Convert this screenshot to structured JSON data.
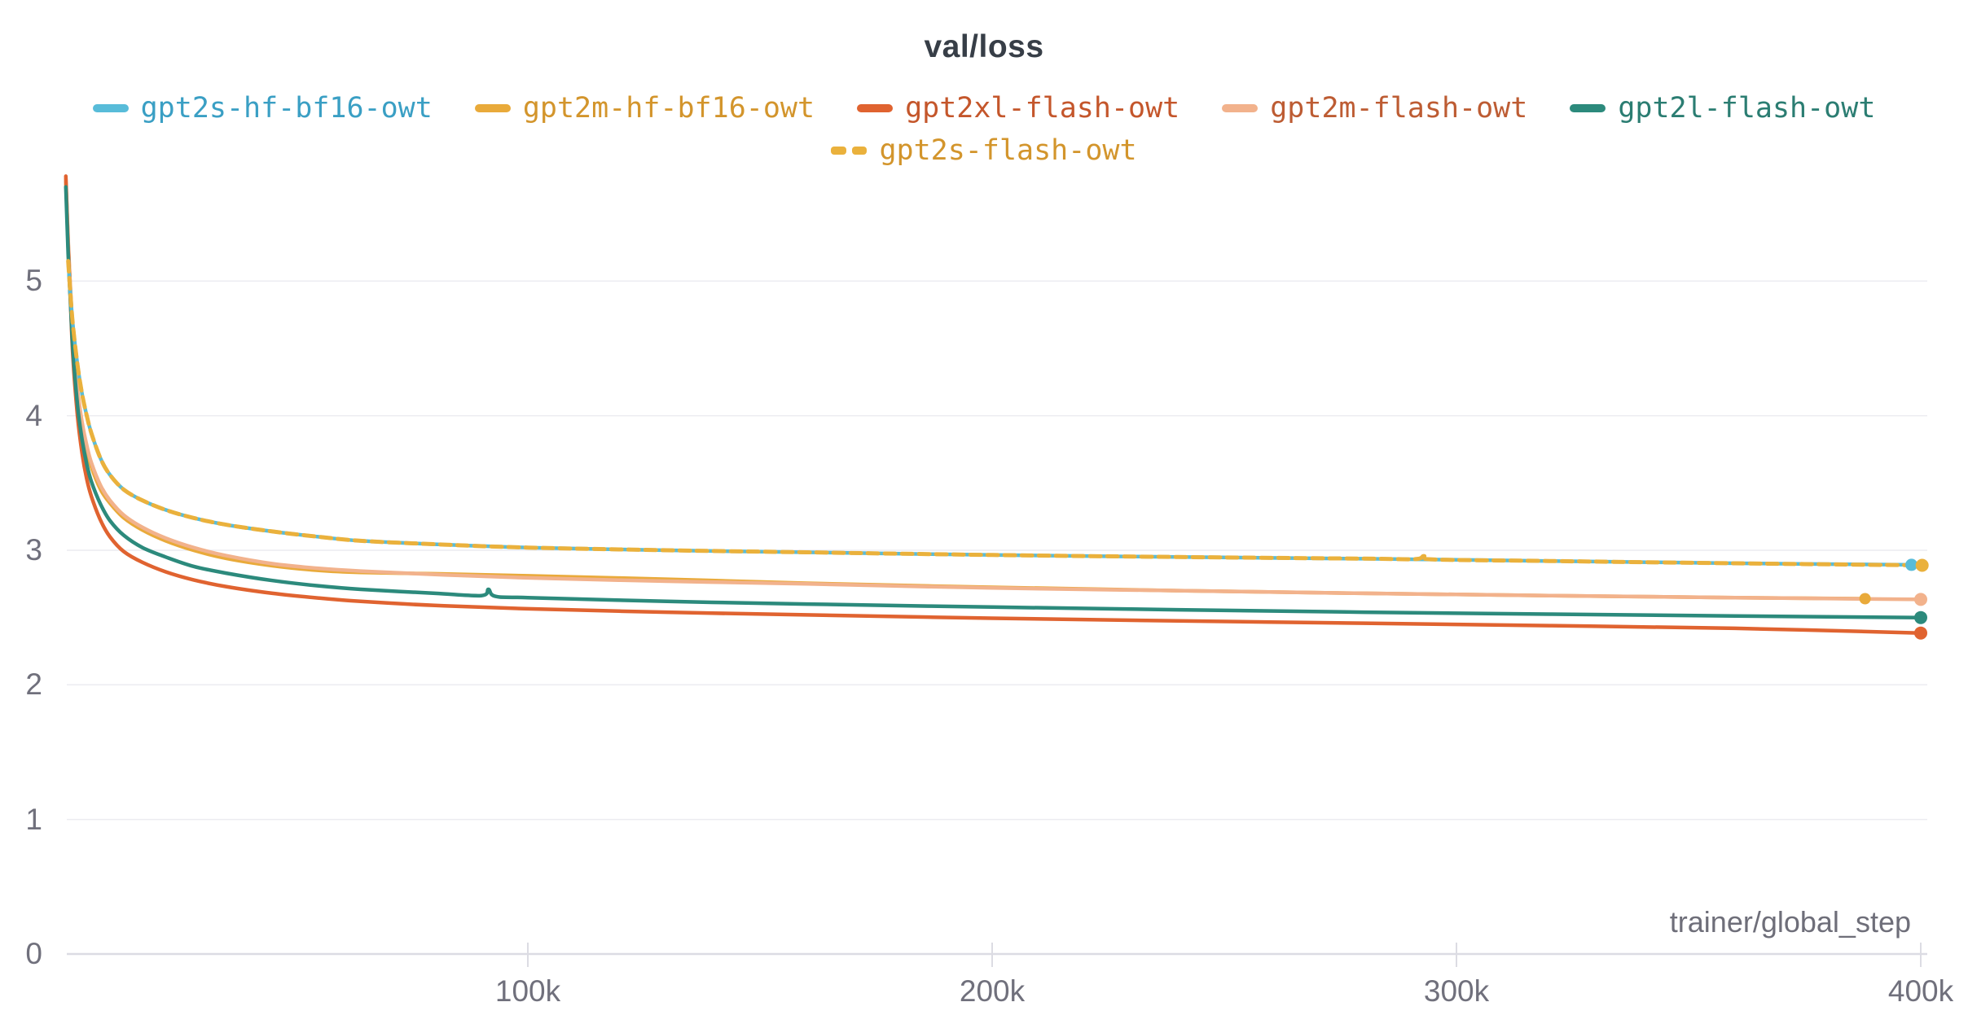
{
  "chart": {
    "title": "val/loss",
    "x_axis_label": "trainer/global_step"
  },
  "colors": {
    "background": "#ffffff",
    "title_text": "#373e47",
    "tick_text": "#70707c",
    "gridline": "#ececf1",
    "axis_line": "#dcdce3"
  },
  "chart_data": {
    "type": "line",
    "title": "val/loss",
    "xlabel": "trainer/global_step",
    "ylabel": "",
    "x_unit": "thousand steps (k)",
    "xlim": [
      0,
      405
    ],
    "ylim": [
      0,
      6
    ],
    "grid": "horizontal",
    "legend_position": "top",
    "y_ticks": [
      {
        "label": "0",
        "value": 0
      },
      {
        "label": "1",
        "value": 1
      },
      {
        "label": "2",
        "value": 2
      },
      {
        "label": "3",
        "value": 3
      },
      {
        "label": "4",
        "value": 4
      },
      {
        "label": "5",
        "value": 5
      }
    ],
    "x_ticks": [
      {
        "label": "100k",
        "value": 100
      },
      {
        "label": "200k",
        "value": 200
      },
      {
        "label": "300k",
        "value": 300
      },
      {
        "label": "400k",
        "value": 400
      }
    ],
    "series": [
      {
        "name": "gpt2s-hf-bf16-owt",
        "color": "#58bcd9",
        "text_color": "#3a9fc4",
        "dashed": false,
        "legend_row": 0,
        "z": 5,
        "end_dot": {
          "step_k": 398,
          "loss": 2.892,
          "r": 7.5
        },
        "points": [
          [
            1,
            5.15
          ],
          [
            1.5,
            4.9
          ],
          [
            2,
            4.68
          ],
          [
            3,
            4.38
          ],
          [
            4,
            4.16
          ],
          [
            5,
            4.0
          ],
          [
            6,
            3.87
          ],
          [
            8,
            3.68
          ],
          [
            10,
            3.56
          ],
          [
            13,
            3.45
          ],
          [
            17,
            3.37
          ],
          [
            22,
            3.3
          ],
          [
            28,
            3.24
          ],
          [
            35,
            3.19
          ],
          [
            45,
            3.14
          ],
          [
            55,
            3.1
          ],
          [
            64,
            3.07
          ],
          [
            80,
            3.045
          ],
          [
            100,
            3.02
          ],
          [
            130,
            3.0
          ],
          [
            160,
            2.985
          ],
          [
            200,
            2.965
          ],
          [
            240,
            2.95
          ],
          [
            280,
            2.937
          ],
          [
            320,
            2.92
          ],
          [
            360,
            2.903
          ],
          [
            398,
            2.892
          ]
        ]
      },
      {
        "name": "gpt2m-hf-bf16-owt",
        "color": "#e9aa3a",
        "text_color": "#d3952c",
        "dashed": false,
        "legend_row": 0,
        "z": 1,
        "end_dot": {
          "step_k": 388,
          "loss": 2.64,
          "r": 7
        },
        "points": [
          [
            0.5,
            5.74
          ],
          [
            1,
            5.28
          ],
          [
            1.5,
            4.93
          ],
          [
            2,
            4.6
          ],
          [
            3,
            4.18
          ],
          [
            4,
            3.92
          ],
          [
            5,
            3.75
          ],
          [
            6,
            3.62
          ],
          [
            8,
            3.45
          ],
          [
            10,
            3.35
          ],
          [
            13,
            3.24
          ],
          [
            17,
            3.15
          ],
          [
            22,
            3.07
          ],
          [
            28,
            3.0
          ],
          [
            35,
            2.94
          ],
          [
            45,
            2.885
          ],
          [
            55,
            2.85
          ],
          [
            64,
            2.835
          ],
          [
            80,
            2.825
          ],
          [
            100,
            2.81
          ],
          [
            130,
            2.785
          ],
          [
            160,
            2.755
          ],
          [
            200,
            2.725
          ],
          [
            240,
            2.7
          ],
          [
            280,
            2.68
          ],
          [
            320,
            2.663
          ],
          [
            360,
            2.648
          ],
          [
            388,
            2.64
          ]
        ]
      },
      {
        "name": "gpt2xl-flash-owt",
        "color": "#e06330",
        "text_color": "#c4562b",
        "dashed": false,
        "legend_row": 0,
        "z": 3,
        "end_dot": {
          "step_k": 400,
          "loss": 2.385,
          "r": 8
        },
        "points": [
          [
            0.5,
            5.78
          ],
          [
            1,
            5.25
          ],
          [
            1.5,
            4.85
          ],
          [
            2,
            4.45
          ],
          [
            3,
            4.0
          ],
          [
            4,
            3.72
          ],
          [
            5,
            3.53
          ],
          [
            6,
            3.4
          ],
          [
            8,
            3.22
          ],
          [
            10,
            3.1
          ],
          [
            13,
            2.99
          ],
          [
            17,
            2.91
          ],
          [
            22,
            2.84
          ],
          [
            28,
            2.78
          ],
          [
            35,
            2.73
          ],
          [
            45,
            2.68
          ],
          [
            55,
            2.645
          ],
          [
            64,
            2.62
          ],
          [
            80,
            2.59
          ],
          [
            100,
            2.565
          ],
          [
            130,
            2.54
          ],
          [
            160,
            2.52
          ],
          [
            200,
            2.495
          ],
          [
            240,
            2.475
          ],
          [
            280,
            2.458
          ],
          [
            320,
            2.44
          ],
          [
            360,
            2.42
          ],
          [
            400,
            2.385
          ]
        ]
      },
      {
        "name": "gpt2m-flash-owt",
        "color": "#f2b28c",
        "text_color": "#bd5c33",
        "dashed": false,
        "legend_row": 0,
        "z": 2,
        "end_dot": {
          "step_k": 400,
          "loss": 2.635,
          "r": 8
        },
        "points": [
          [
            0.5,
            5.76
          ],
          [
            1,
            5.3
          ],
          [
            1.5,
            4.95
          ],
          [
            2,
            4.62
          ],
          [
            3,
            4.2
          ],
          [
            4,
            3.95
          ],
          [
            5,
            3.78
          ],
          [
            6,
            3.65
          ],
          [
            8,
            3.48
          ],
          [
            10,
            3.37
          ],
          [
            13,
            3.26
          ],
          [
            17,
            3.17
          ],
          [
            22,
            3.09
          ],
          [
            28,
            3.02
          ],
          [
            35,
            2.96
          ],
          [
            45,
            2.9
          ],
          [
            55,
            2.865
          ],
          [
            64,
            2.845
          ],
          [
            80,
            2.82
          ],
          [
            100,
            2.795
          ],
          [
            130,
            2.77
          ],
          [
            160,
            2.75
          ],
          [
            200,
            2.72
          ],
          [
            240,
            2.7
          ],
          [
            280,
            2.68
          ],
          [
            320,
            2.663
          ],
          [
            360,
            2.648
          ],
          [
            400,
            2.635
          ]
        ]
      },
      {
        "name": "gpt2l-flash-owt",
        "color": "#2c8a7c",
        "text_color": "#2b7d72",
        "dashed": false,
        "legend_row": 0,
        "z": 4,
        "end_dot": {
          "step_k": 400,
          "loss": 2.5,
          "r": 8
        },
        "points": [
          [
            0.5,
            5.7
          ],
          [
            1,
            5.2
          ],
          [
            1.5,
            4.85
          ],
          [
            2,
            4.5
          ],
          [
            3,
            4.08
          ],
          [
            4,
            3.82
          ],
          [
            5,
            3.64
          ],
          [
            6,
            3.51
          ],
          [
            8,
            3.34
          ],
          [
            10,
            3.22
          ],
          [
            13,
            3.11
          ],
          [
            17,
            3.02
          ],
          [
            22,
            2.95
          ],
          [
            28,
            2.88
          ],
          [
            35,
            2.83
          ],
          [
            45,
            2.775
          ],
          [
            55,
            2.735
          ],
          [
            64,
            2.71
          ],
          [
            80,
            2.68
          ],
          [
            90,
            2.663
          ],
          [
            91.5,
            2.71
          ],
          [
            93,
            2.658
          ],
          [
            100,
            2.648
          ],
          [
            130,
            2.62
          ],
          [
            160,
            2.6
          ],
          [
            200,
            2.578
          ],
          [
            240,
            2.558
          ],
          [
            280,
            2.54
          ],
          [
            320,
            2.525
          ],
          [
            360,
            2.512
          ],
          [
            400,
            2.5
          ]
        ]
      },
      {
        "name": "gpt2s-flash-owt",
        "color": "#eab13c",
        "text_color": "#d3952c",
        "dashed": true,
        "legend_row": 1,
        "z": 6,
        "end_dot": {
          "step_k": 400.3,
          "loss": 2.888,
          "r": 8
        },
        "points": [
          [
            1,
            5.15
          ],
          [
            1.5,
            4.9
          ],
          [
            2,
            4.68
          ],
          [
            3,
            4.38
          ],
          [
            4,
            4.16
          ],
          [
            5,
            4.0
          ],
          [
            6,
            3.87
          ],
          [
            8,
            3.68
          ],
          [
            10,
            3.56
          ],
          [
            13,
            3.45
          ],
          [
            17,
            3.37
          ],
          [
            22,
            3.3
          ],
          [
            28,
            3.24
          ],
          [
            35,
            3.19
          ],
          [
            45,
            3.14
          ],
          [
            55,
            3.1
          ],
          [
            64,
            3.07
          ],
          [
            80,
            3.045
          ],
          [
            100,
            3.02
          ],
          [
            130,
            3.0
          ],
          [
            160,
            2.985
          ],
          [
            200,
            2.965
          ],
          [
            240,
            2.95
          ],
          [
            280,
            2.938
          ],
          [
            291,
            2.934
          ],
          [
            293,
            2.957
          ],
          [
            295,
            2.932
          ],
          [
            320,
            2.92
          ],
          [
            360,
            2.903
          ],
          [
            400.3,
            2.888
          ]
        ]
      }
    ]
  }
}
